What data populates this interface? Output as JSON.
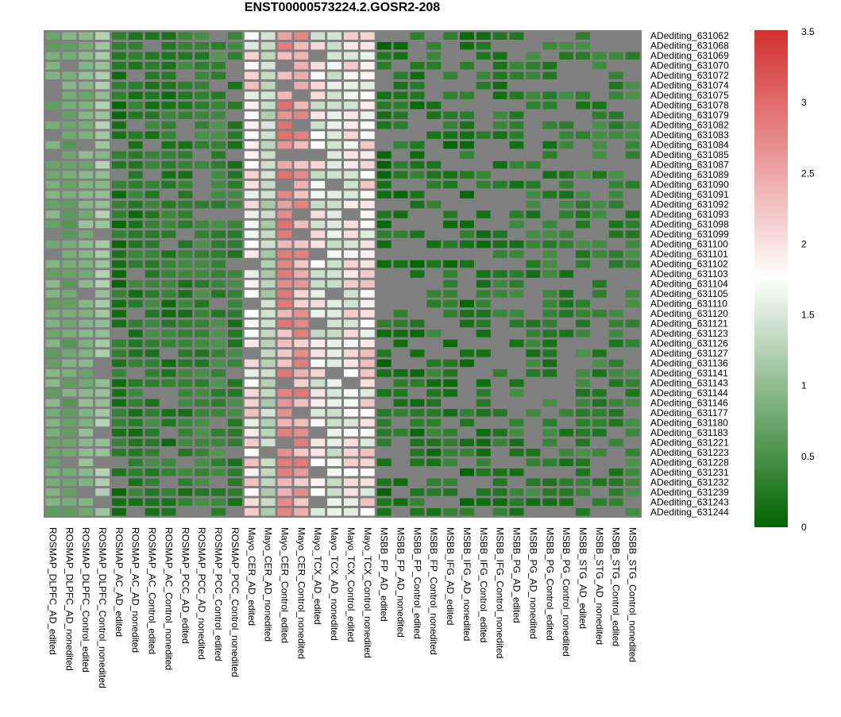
{
  "chart_data": {
    "type": "heatmap",
    "title": "ENST00000573224.2.GOSR2-208",
    "columns": [
      "ROSMAP_DLPFC_AD_edited",
      "ROSMAP_DLPFC_AD_nonedited",
      "ROSMAP_DLPFC_Control_edited",
      "ROSMAP_DLPFC_Control_nonedited",
      "ROSMAP_AC_AD_edited",
      "ROSMAP_AC_AD_nonedited",
      "ROSMAP_AC_Control_edited",
      "ROSMAP_AC_Control_nonedited",
      "ROSMAP_PCC_AD_edited",
      "ROSMAP_PCC_AD_nonedited",
      "ROSMAP_PCC_Control_edited",
      "ROSMAP_PCC_Control_nonedited",
      "Mayo_CER_AD_edited",
      "Mayo_CER_AD_nonedited",
      "Mayo_CER_Control_edited",
      "Mayo_CER_Control_nonedited",
      "Mayo_TCX_AD_edited",
      "Mayo_TCX_AD_nonedited",
      "Mayo_TCX_Control_edited",
      "Mayo_TCX_Control_nonedited",
      "MSBB_FP_AD_edited",
      "MSBB_FP_AD_nonedited",
      "MSBB_FP_Control_edited",
      "MSBB_FP_Control_nonedited",
      "MSBB_IFG_AD_edited",
      "MSBB_IFG_AD_nonedited",
      "MSBB_IFG_Control_edited",
      "MSBB_IFG_Control_nonedited",
      "MSBB_PG_AD_edited",
      "MSBB_PG_AD_nonedited",
      "MSBB_PG_Control_edited",
      "MSBB_PG_Control_nonedited",
      "MSBB_STG_AD_edited",
      "MSBB_STG_AD_nonedited",
      "MSBB_STG_Control_edited",
      "MSBB_STG_Control_nonedited"
    ],
    "rows": [
      "ADediting_631062",
      "ADediting_631068",
      "ADediting_631069",
      "ADediting_631070",
      "ADediting_631072",
      "ADediting_631074",
      "ADediting_631075",
      "ADediting_631078",
      "ADediting_631079",
      "ADediting_631082",
      "ADediting_631083",
      "ADediting_631084",
      "ADediting_631085",
      "ADediting_631087",
      "ADediting_631089",
      "ADediting_631090",
      "ADediting_631091",
      "ADediting_631092",
      "ADediting_631093",
      "ADediting_631098",
      "ADediting_631099",
      "ADediting_631100",
      "ADediting_631101",
      "ADediting_631102",
      "ADediting_631103",
      "ADediting_631104",
      "ADediting_631105",
      "ADediting_631110",
      "ADediting_631120",
      "ADediting_631121",
      "ADediting_631123",
      "ADediting_631126",
      "ADediting_631127",
      "ADediting_631136",
      "ADediting_631141",
      "ADediting_631143",
      "ADediting_631144",
      "ADediting_631146",
      "ADediting_631177",
      "ADediting_631180",
      "ADediting_631183",
      "ADediting_631221",
      "ADediting_631223",
      "ADediting_631228",
      "ADediting_631231",
      "ADediting_631232",
      "ADediting_631239",
      "ADediting_631243",
      "ADediting_631244"
    ],
    "column_base_values": [
      0.8,
      0.75,
      0.9,
      1.1,
      0.2,
      0.25,
      0.3,
      0.25,
      0.3,
      0.35,
      0.4,
      0.3,
      1.9,
      1.3,
      2.6,
      2.5,
      1.7,
      1.5,
      1.8,
      1.9,
      0.15,
      0.2,
      0.2,
      0.25,
      0.2,
      0.2,
      0.25,
      0.25,
      0.3,
      0.3,
      0.3,
      0.3,
      0.35,
      0.35,
      0.35,
      0.35
    ],
    "missing_value_color": "#808080",
    "color_scale": {
      "min": 0,
      "max": 3.5,
      "stops": [
        {
          "value": 0,
          "color": "#006400"
        },
        {
          "value": 1.75,
          "color": "#ffffff"
        },
        {
          "value": 3.5,
          "color": "#d32f2f"
        }
      ],
      "ticks": [
        "0",
        "0.5",
        "1",
        "1.5",
        "2",
        "2.5",
        "3",
        "3.5"
      ],
      "tick_values": [
        0,
        0.5,
        1,
        1.5,
        2,
        2.5,
        3,
        3.5
      ]
    }
  }
}
